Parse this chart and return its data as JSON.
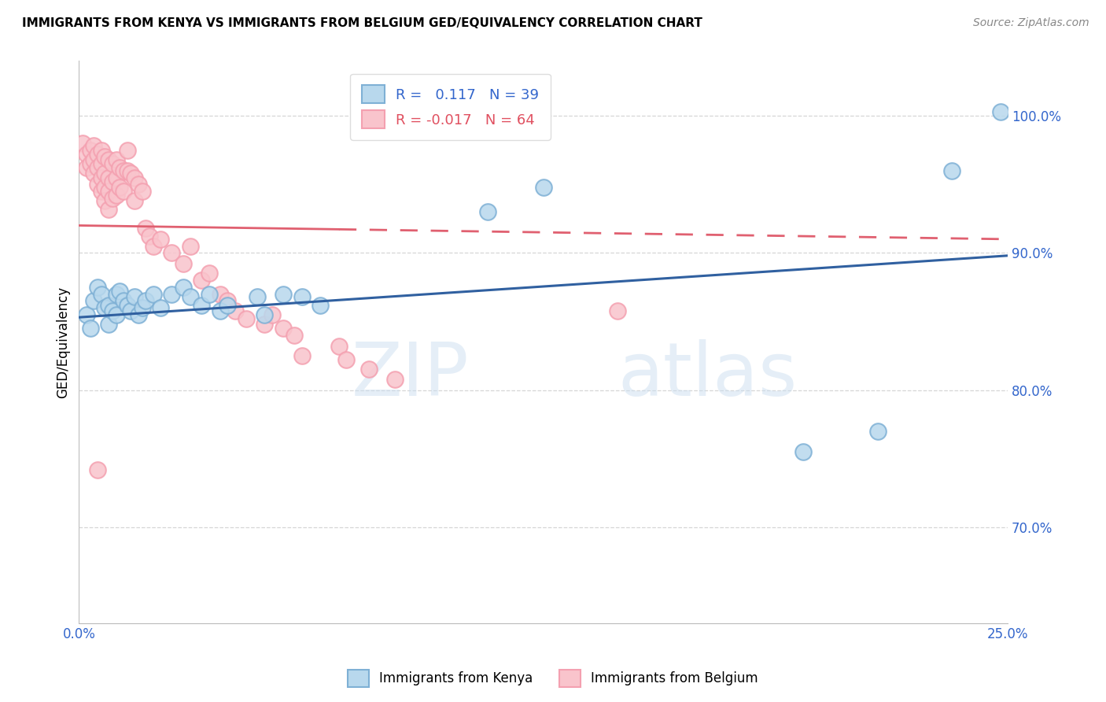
{
  "title": "IMMIGRANTS FROM KENYA VS IMMIGRANTS FROM BELGIUM GED/EQUIVALENCY CORRELATION CHART",
  "source": "Source: ZipAtlas.com",
  "ylabel": "GED/Equivalency",
  "x_min": 0.0,
  "x_max": 0.25,
  "y_min": 0.63,
  "y_max": 1.04,
  "x_ticks": [
    0.0,
    0.05,
    0.1,
    0.15,
    0.2,
    0.25
  ],
  "x_tick_labels": [
    "0.0%",
    "",
    "",
    "",
    "",
    "25.0%"
  ],
  "y_ticks": [
    0.7,
    0.8,
    0.9,
    1.0
  ],
  "y_tick_labels": [
    "70.0%",
    "80.0%",
    "90.0%",
    "100.0%"
  ],
  "kenya_R": 0.117,
  "kenya_N": 39,
  "belgium_R": -0.017,
  "belgium_N": 64,
  "kenya_color": "#7eb0d5",
  "kenya_color_fill": "#b8d8ed",
  "belgium_color": "#f4a0b0",
  "belgium_color_fill": "#f9c4cc",
  "kenya_line_color": "#3060a0",
  "belgium_line_color": "#e06070",
  "watermark_zip": "ZIP",
  "watermark_atlas": "atlas",
  "kenya_line_y0": 0.853,
  "kenya_line_y1": 0.898,
  "belgium_line_y0": 0.92,
  "belgium_line_y1": 0.91,
  "belgium_line_solid_end": 0.07,
  "kenya_points": [
    [
      0.002,
      0.855
    ],
    [
      0.003,
      0.845
    ],
    [
      0.004,
      0.865
    ],
    [
      0.005,
      0.875
    ],
    [
      0.006,
      0.87
    ],
    [
      0.007,
      0.86
    ],
    [
      0.008,
      0.862
    ],
    [
      0.008,
      0.848
    ],
    [
      0.009,
      0.858
    ],
    [
      0.01,
      0.87
    ],
    [
      0.01,
      0.855
    ],
    [
      0.011,
      0.872
    ],
    [
      0.012,
      0.865
    ],
    [
      0.013,
      0.862
    ],
    [
      0.014,
      0.858
    ],
    [
      0.015,
      0.868
    ],
    [
      0.016,
      0.855
    ],
    [
      0.017,
      0.86
    ],
    [
      0.018,
      0.865
    ],
    [
      0.02,
      0.87
    ],
    [
      0.022,
      0.86
    ],
    [
      0.025,
      0.87
    ],
    [
      0.028,
      0.875
    ],
    [
      0.03,
      0.868
    ],
    [
      0.033,
      0.862
    ],
    [
      0.035,
      0.87
    ],
    [
      0.038,
      0.858
    ],
    [
      0.04,
      0.862
    ],
    [
      0.048,
      0.868
    ],
    [
      0.05,
      0.855
    ],
    [
      0.055,
      0.87
    ],
    [
      0.06,
      0.868
    ],
    [
      0.065,
      0.862
    ],
    [
      0.11,
      0.93
    ],
    [
      0.125,
      0.948
    ],
    [
      0.195,
      0.755
    ],
    [
      0.215,
      0.77
    ],
    [
      0.235,
      0.96
    ],
    [
      0.248,
      1.003
    ]
  ],
  "belgium_points": [
    [
      0.001,
      0.98
    ],
    [
      0.002,
      0.972
    ],
    [
      0.002,
      0.962
    ],
    [
      0.003,
      0.975
    ],
    [
      0.003,
      0.965
    ],
    [
      0.004,
      0.978
    ],
    [
      0.004,
      0.968
    ],
    [
      0.004,
      0.958
    ],
    [
      0.005,
      0.972
    ],
    [
      0.005,
      0.962
    ],
    [
      0.005,
      0.95
    ],
    [
      0.006,
      0.975
    ],
    [
      0.006,
      0.965
    ],
    [
      0.006,
      0.955
    ],
    [
      0.006,
      0.945
    ],
    [
      0.007,
      0.97
    ],
    [
      0.007,
      0.958
    ],
    [
      0.007,
      0.948
    ],
    [
      0.007,
      0.938
    ],
    [
      0.008,
      0.968
    ],
    [
      0.008,
      0.955
    ],
    [
      0.008,
      0.945
    ],
    [
      0.008,
      0.932
    ],
    [
      0.009,
      0.965
    ],
    [
      0.009,
      0.952
    ],
    [
      0.009,
      0.94
    ],
    [
      0.01,
      0.968
    ],
    [
      0.01,
      0.955
    ],
    [
      0.01,
      0.942
    ],
    [
      0.011,
      0.962
    ],
    [
      0.011,
      0.948
    ],
    [
      0.012,
      0.96
    ],
    [
      0.012,
      0.945
    ],
    [
      0.013,
      0.975
    ],
    [
      0.013,
      0.96
    ],
    [
      0.014,
      0.958
    ],
    [
      0.015,
      0.955
    ],
    [
      0.015,
      0.938
    ],
    [
      0.016,
      0.95
    ],
    [
      0.017,
      0.945
    ],
    [
      0.018,
      0.918
    ],
    [
      0.019,
      0.912
    ],
    [
      0.02,
      0.905
    ],
    [
      0.022,
      0.91
    ],
    [
      0.025,
      0.9
    ],
    [
      0.028,
      0.892
    ],
    [
      0.03,
      0.905
    ],
    [
      0.033,
      0.88
    ],
    [
      0.035,
      0.885
    ],
    [
      0.038,
      0.87
    ],
    [
      0.04,
      0.865
    ],
    [
      0.042,
      0.858
    ],
    [
      0.045,
      0.852
    ],
    [
      0.05,
      0.848
    ],
    [
      0.052,
      0.855
    ],
    [
      0.055,
      0.845
    ],
    [
      0.058,
      0.84
    ],
    [
      0.06,
      0.825
    ],
    [
      0.07,
      0.832
    ],
    [
      0.072,
      0.822
    ],
    [
      0.078,
      0.815
    ],
    [
      0.085,
      0.808
    ],
    [
      0.145,
      0.858
    ],
    [
      0.005,
      0.742
    ]
  ]
}
